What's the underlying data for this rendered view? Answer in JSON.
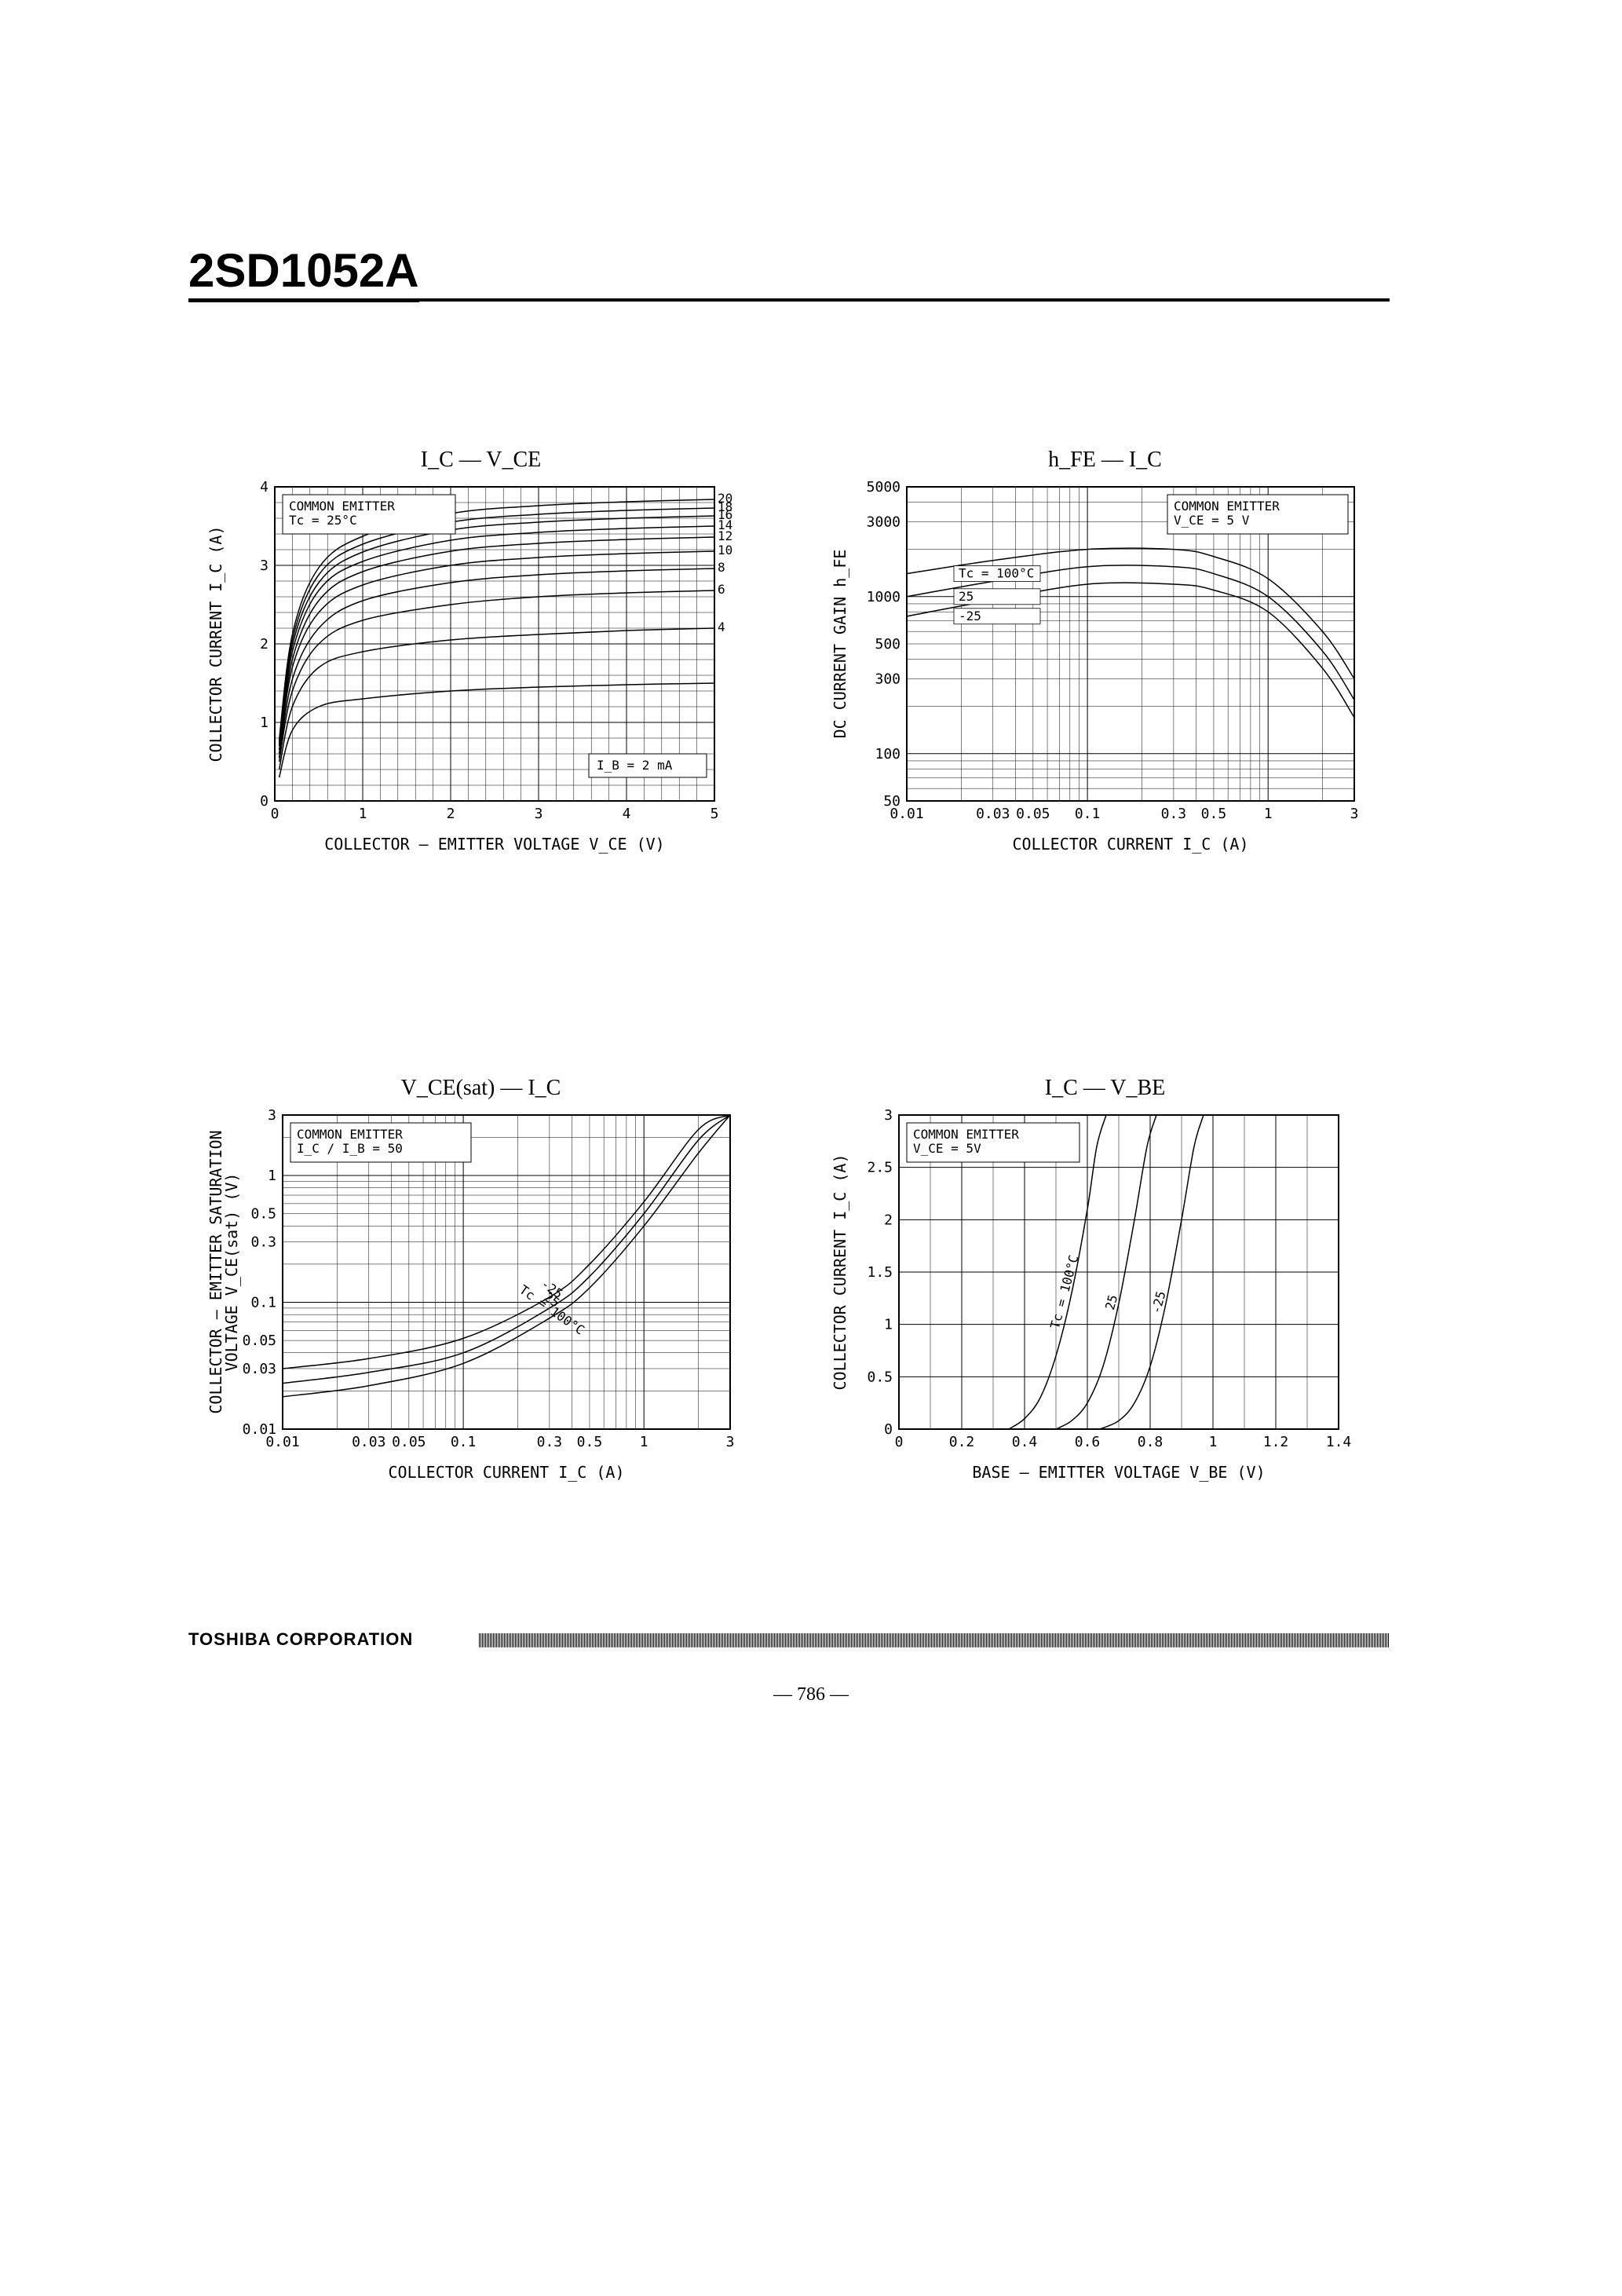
{
  "part_number": "2SD1052A",
  "footer_brand": "TOSHIBA CORPORATION",
  "page_number": "— 786 —",
  "chart1": {
    "type": "line-family",
    "title": "I_C  —  V_CE",
    "info_lines": [
      "COMMON EMITTER",
      "Tc = 25°C"
    ],
    "base_label": "I_B = 2 mA",
    "xlabel": "COLLECTOR — EMITTER VOLTAGE  V_CE  (V)",
    "ylabel": "COLLECTOR CURRENT  I_C  (A)",
    "xlim": [
      0,
      5
    ],
    "ylim": [
      0,
      4
    ],
    "xticks": [
      0,
      1,
      2,
      3,
      4,
      5
    ],
    "yticks": [
      0,
      1,
      2,
      3,
      4
    ],
    "x_minor_per": 5,
    "y_minor_per": 5,
    "curve_end_labels": [
      "20",
      "18",
      "16",
      "14",
      "12",
      "10",
      "8",
      "6",
      "4"
    ],
    "series": [
      {
        "label": "2",
        "pts": [
          [
            0.05,
            0.3
          ],
          [
            0.2,
            0.9
          ],
          [
            0.5,
            1.2
          ],
          [
            1,
            1.3
          ],
          [
            2,
            1.4
          ],
          [
            3,
            1.45
          ],
          [
            4,
            1.48
          ],
          [
            5,
            1.5
          ]
        ]
      },
      {
        "label": "4",
        "pts": [
          [
            0.05,
            0.4
          ],
          [
            0.2,
            1.2
          ],
          [
            0.5,
            1.7
          ],
          [
            1,
            1.9
          ],
          [
            2,
            2.05
          ],
          [
            3,
            2.12
          ],
          [
            4,
            2.17
          ],
          [
            5,
            2.2
          ]
        ]
      },
      {
        "label": "6",
        "pts": [
          [
            0.05,
            0.5
          ],
          [
            0.2,
            1.4
          ],
          [
            0.5,
            2.0
          ],
          [
            1,
            2.3
          ],
          [
            2,
            2.5
          ],
          [
            3,
            2.6
          ],
          [
            4,
            2.65
          ],
          [
            5,
            2.68
          ]
        ]
      },
      {
        "label": "8",
        "pts": [
          [
            0.05,
            0.55
          ],
          [
            0.2,
            1.55
          ],
          [
            0.5,
            2.2
          ],
          [
            1,
            2.55
          ],
          [
            2,
            2.78
          ],
          [
            3,
            2.88
          ],
          [
            4,
            2.93
          ],
          [
            5,
            2.96
          ]
        ]
      },
      {
        "label": "10",
        "pts": [
          [
            0.05,
            0.6
          ],
          [
            0.2,
            1.7
          ],
          [
            0.5,
            2.4
          ],
          [
            1,
            2.75
          ],
          [
            2,
            3.0
          ],
          [
            3,
            3.1
          ],
          [
            4,
            3.15
          ],
          [
            5,
            3.18
          ]
        ]
      },
      {
        "label": "12",
        "pts": [
          [
            0.05,
            0.65
          ],
          [
            0.2,
            1.8
          ],
          [
            0.5,
            2.55
          ],
          [
            1,
            2.92
          ],
          [
            2,
            3.18
          ],
          [
            3,
            3.28
          ],
          [
            4,
            3.33
          ],
          [
            5,
            3.36
          ]
        ]
      },
      {
        "label": "14",
        "pts": [
          [
            0.05,
            0.7
          ],
          [
            0.2,
            1.9
          ],
          [
            0.5,
            2.68
          ],
          [
            1,
            3.05
          ],
          [
            2,
            3.32
          ],
          [
            3,
            3.42
          ],
          [
            4,
            3.47
          ],
          [
            5,
            3.5
          ]
        ]
      },
      {
        "label": "16",
        "pts": [
          [
            0.05,
            0.72
          ],
          [
            0.2,
            1.98
          ],
          [
            0.5,
            2.78
          ],
          [
            1,
            3.17
          ],
          [
            2,
            3.45
          ],
          [
            3,
            3.55
          ],
          [
            4,
            3.6
          ],
          [
            5,
            3.63
          ]
        ]
      },
      {
        "label": "18",
        "pts": [
          [
            0.05,
            0.75
          ],
          [
            0.2,
            2.05
          ],
          [
            0.5,
            2.88
          ],
          [
            1,
            3.27
          ],
          [
            2,
            3.55
          ],
          [
            3,
            3.65
          ],
          [
            4,
            3.7
          ],
          [
            5,
            3.73
          ]
        ]
      },
      {
        "label": "20",
        "pts": [
          [
            0.05,
            0.78
          ],
          [
            0.2,
            2.12
          ],
          [
            0.5,
            2.97
          ],
          [
            1,
            3.37
          ],
          [
            2,
            3.66
          ],
          [
            3,
            3.76
          ],
          [
            4,
            3.81
          ],
          [
            5,
            3.84
          ]
        ]
      }
    ],
    "line_color": "#000000",
    "grid_color": "#000000",
    "background_color": "#ffffff",
    "line_width": 1.5
  },
  "chart2": {
    "type": "line-family-loglog",
    "title": "h_FE  —  I_C",
    "info_lines": [
      "COMMON EMITTER",
      "V_CE = 5 V"
    ],
    "curve_labels": [
      "Tc = 100°C",
      "25",
      "-25"
    ],
    "xlabel": "COLLECTOR CURRENT  I_C  (A)",
    "ylabel": "DC CURRENT GAIN  h_FE",
    "xlim": [
      0.01,
      3
    ],
    "ylim": [
      50,
      5000
    ],
    "xticks": [
      0.01,
      0.03,
      0.05,
      0.1,
      0.3,
      0.5,
      1,
      3
    ],
    "yticks": [
      50,
      100,
      300,
      500,
      1000,
      3000,
      5000
    ],
    "xtick_labels": [
      "0.01",
      "0.03",
      "0.05",
      "0.1",
      "0.3",
      "0.5",
      "1",
      "3"
    ],
    "ytick_labels": [
      "50",
      "100",
      "300",
      "500",
      "1000",
      "3000",
      "5000"
    ],
    "series": [
      {
        "label": "100",
        "pts": [
          [
            0.01,
            1400
          ],
          [
            0.03,
            1700
          ],
          [
            0.1,
            2000
          ],
          [
            0.3,
            2000
          ],
          [
            0.5,
            1800
          ],
          [
            1,
            1300
          ],
          [
            2,
            600
          ],
          [
            3,
            300
          ]
        ]
      },
      {
        "label": "25",
        "pts": [
          [
            0.01,
            1000
          ],
          [
            0.03,
            1250
          ],
          [
            0.1,
            1550
          ],
          [
            0.3,
            1550
          ],
          [
            0.5,
            1400
          ],
          [
            1,
            1000
          ],
          [
            2,
            450
          ],
          [
            3,
            220
          ]
        ]
      },
      {
        "label": "-25",
        "pts": [
          [
            0.01,
            750
          ],
          [
            0.03,
            950
          ],
          [
            0.1,
            1200
          ],
          [
            0.3,
            1200
          ],
          [
            0.5,
            1100
          ],
          [
            1,
            800
          ],
          [
            2,
            350
          ],
          [
            3,
            170
          ]
        ]
      }
    ],
    "line_color": "#000000",
    "grid_color": "#000000",
    "background_color": "#ffffff",
    "line_width": 1.5
  },
  "chart3": {
    "type": "line-family-loglog",
    "title": "V_CE(sat)  —  I_C",
    "info_lines": [
      "COMMON EMITTER",
      "I_C / I_B = 50"
    ],
    "curve_labels": [
      "Tc = 100°C",
      "25",
      "-25"
    ],
    "xlabel": "COLLECTOR CURRENT  I_C  (A)",
    "ylabel": "COLLECTOR — EMITTER SATURATION\nVOLTAGE  V_CE(sat) (V)",
    "xlim": [
      0.01,
      3
    ],
    "ylim": [
      0.01,
      3
    ],
    "xticks": [
      0.01,
      0.03,
      0.05,
      0.1,
      0.3,
      0.5,
      1,
      3
    ],
    "yticks": [
      0.01,
      0.03,
      0.05,
      0.1,
      0.3,
      0.5,
      1,
      3
    ],
    "xtick_labels": [
      "0.01",
      "0.03",
      "0.05",
      "0.1",
      "0.3",
      "0.5",
      "1",
      "3"
    ],
    "ytick_labels": [
      "0.01",
      "0.03",
      "0.05",
      "0.1",
      "0.3",
      "0.5",
      "1",
      "3"
    ],
    "series": [
      {
        "label": "-25",
        "pts": [
          [
            0.01,
            0.018
          ],
          [
            0.03,
            0.022
          ],
          [
            0.1,
            0.033
          ],
          [
            0.3,
            0.075
          ],
          [
            0.5,
            0.13
          ],
          [
            1,
            0.4
          ],
          [
            2,
            1.5
          ],
          [
            3,
            3.0
          ]
        ]
      },
      {
        "label": "25",
        "pts": [
          [
            0.01,
            0.023
          ],
          [
            0.03,
            0.028
          ],
          [
            0.1,
            0.04
          ],
          [
            0.3,
            0.09
          ],
          [
            0.5,
            0.16
          ],
          [
            1,
            0.5
          ],
          [
            2,
            1.9
          ],
          [
            3,
            3.0
          ]
        ]
      },
      {
        "label": "100",
        "pts": [
          [
            0.01,
            0.03
          ],
          [
            0.03,
            0.036
          ],
          [
            0.1,
            0.052
          ],
          [
            0.3,
            0.11
          ],
          [
            0.5,
            0.2
          ],
          [
            1,
            0.62
          ],
          [
            2,
            2.3
          ],
          [
            3,
            3.0
          ]
        ]
      }
    ],
    "line_color": "#000000",
    "grid_color": "#000000",
    "background_color": "#ffffff",
    "line_width": 1.5
  },
  "chart4": {
    "type": "line-family",
    "title": "I_C  —  V_BE",
    "info_lines": [
      "COMMON EMITTER",
      "V_CE = 5V"
    ],
    "curve_labels": [
      "Tc = 100°C",
      "25",
      "-25"
    ],
    "xlabel": "BASE — EMITTER VOLTAGE  V_BE  (V)",
    "ylabel": "COLLECTOR CURRENT  I_C  (A)",
    "xlim": [
      0,
      1.4
    ],
    "ylim": [
      0,
      3.0
    ],
    "xticks": [
      0,
      0.2,
      0.4,
      0.6,
      0.8,
      1.0,
      1.2,
      1.4
    ],
    "yticks": [
      0,
      0.5,
      1.0,
      1.5,
      2.0,
      2.5,
      3.0
    ],
    "x_minor_per": 2,
    "y_minor_per": 1,
    "series": [
      {
        "label": "100",
        "pts": [
          [
            0.35,
            0
          ],
          [
            0.4,
            0.1
          ],
          [
            0.45,
            0.3
          ],
          [
            0.5,
            0.7
          ],
          [
            0.55,
            1.3
          ],
          [
            0.6,
            2.1
          ],
          [
            0.63,
            2.7
          ],
          [
            0.66,
            3.0
          ]
        ]
      },
      {
        "label": "25",
        "pts": [
          [
            0.5,
            0
          ],
          [
            0.55,
            0.08
          ],
          [
            0.6,
            0.25
          ],
          [
            0.65,
            0.6
          ],
          [
            0.7,
            1.2
          ],
          [
            0.75,
            2.0
          ],
          [
            0.79,
            2.7
          ],
          [
            0.82,
            3.0
          ]
        ]
      },
      {
        "label": "-25",
        "pts": [
          [
            0.64,
            0
          ],
          [
            0.7,
            0.08
          ],
          [
            0.75,
            0.25
          ],
          [
            0.8,
            0.6
          ],
          [
            0.85,
            1.2
          ],
          [
            0.9,
            2.0
          ],
          [
            0.94,
            2.7
          ],
          [
            0.97,
            3.0
          ]
        ]
      }
    ],
    "line_color": "#000000",
    "grid_color": "#000000",
    "background_color": "#ffffff",
    "line_width": 1.5
  }
}
